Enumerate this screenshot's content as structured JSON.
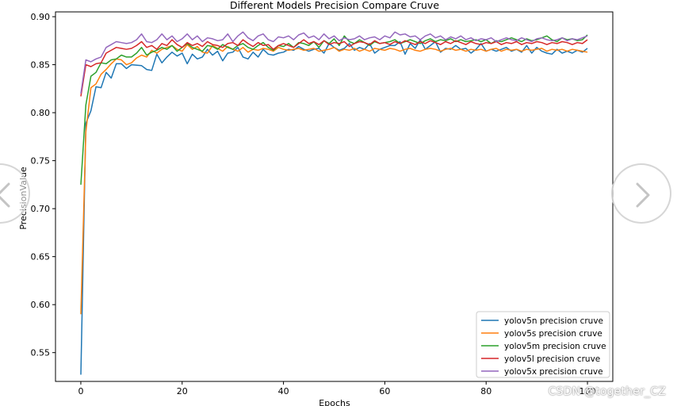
{
  "chart_data": {
    "type": "line",
    "title": "Different Models Precision Compare Cruve",
    "xlabel": "Epochs",
    "ylabel": "PrecisionValue",
    "xlim": [
      -5,
      105
    ],
    "ylim": [
      0.52,
      0.905
    ],
    "xticks": [
      0,
      20,
      40,
      60,
      80,
      100
    ],
    "xtick_labels": [
      "0",
      "20",
      "40",
      "60",
      "80",
      "100"
    ],
    "yticks": [
      0.55,
      0.6,
      0.65,
      0.7,
      0.75,
      0.8,
      0.85,
      0.9
    ],
    "ytick_labels": [
      "0.55",
      "0.60",
      "0.65",
      "0.70",
      "0.75",
      "0.80",
      "0.85",
      "0.90"
    ],
    "grid": false,
    "legend_position": "lower-right",
    "series": [
      {
        "name": "yolov5n precision cruve",
        "color": "#1f77b4",
        "x": [
          0,
          1,
          2,
          3,
          4,
          5,
          6,
          7,
          8,
          9,
          10,
          12,
          13,
          14,
          15,
          16,
          17,
          18,
          19,
          20,
          21,
          22,
          23,
          24,
          25,
          26,
          27,
          28,
          29,
          30,
          31,
          32,
          33,
          34,
          35,
          36,
          37,
          38,
          39,
          40,
          41,
          42,
          43,
          44,
          45,
          46,
          47,
          48,
          49,
          50,
          51,
          52,
          53,
          54,
          55,
          56,
          57,
          58,
          59,
          60,
          61,
          62,
          63,
          64,
          65,
          66,
          67,
          68,
          69,
          70,
          71,
          72,
          73,
          74,
          75,
          76,
          77,
          78,
          79,
          80,
          81,
          82,
          83,
          84,
          85,
          86,
          87,
          88,
          89,
          90,
          91,
          92,
          93,
          94,
          95,
          96,
          97,
          98,
          99,
          100
        ],
        "values": [
          0.527,
          0.789,
          0.802,
          0.827,
          0.826,
          0.842,
          0.836,
          0.851,
          0.851,
          0.846,
          0.85,
          0.849,
          0.845,
          0.844,
          0.861,
          0.852,
          0.858,
          0.863,
          0.859,
          0.862,
          0.851,
          0.861,
          0.856,
          0.858,
          0.866,
          0.86,
          0.864,
          0.854,
          0.862,
          0.863,
          0.868,
          0.858,
          0.856,
          0.863,
          0.858,
          0.866,
          0.861,
          0.86,
          0.862,
          0.863,
          0.866,
          0.865,
          0.869,
          0.866,
          0.864,
          0.866,
          0.867,
          0.862,
          0.872,
          0.868,
          0.865,
          0.867,
          0.872,
          0.865,
          0.868,
          0.866,
          0.872,
          0.862,
          0.866,
          0.868,
          0.87,
          0.87,
          0.874,
          0.861,
          0.872,
          0.867,
          0.876,
          0.866,
          0.87,
          0.874,
          0.863,
          0.867,
          0.866,
          0.87,
          0.866,
          0.867,
          0.862,
          0.866,
          0.872,
          0.864,
          0.866,
          0.864,
          0.866,
          0.868,
          0.864,
          0.866,
          0.863,
          0.87,
          0.862,
          0.868,
          0.864,
          0.862,
          0.861,
          0.866,
          0.862,
          0.864,
          0.862,
          0.865,
          0.863,
          0.867
        ]
      },
      {
        "name": "yolov5s precision cruve",
        "color": "#ff7f0e",
        "x": [
          0,
          1,
          2,
          3,
          4,
          5,
          6,
          7,
          8,
          9,
          10,
          11,
          12,
          13,
          14,
          15,
          16,
          17,
          18,
          19,
          20,
          21,
          22,
          23,
          24,
          25,
          26,
          27,
          28,
          29,
          30,
          31,
          32,
          33,
          34,
          35,
          36,
          37,
          38,
          39,
          40,
          41,
          42,
          43,
          44,
          45,
          46,
          47,
          48,
          49,
          50,
          51,
          52,
          53,
          54,
          55,
          56,
          57,
          58,
          59,
          60,
          61,
          62,
          63,
          64,
          65,
          66,
          67,
          68,
          69,
          70,
          71,
          72,
          73,
          74,
          75,
          76,
          77,
          78,
          79,
          80,
          81,
          82,
          83,
          84,
          85,
          86,
          87,
          88,
          89,
          90,
          91,
          92,
          93,
          94,
          95,
          96,
          97,
          98,
          99,
          100
        ],
        "values": [
          0.59,
          0.78,
          0.826,
          0.83,
          0.84,
          0.845,
          0.851,
          0.856,
          0.855,
          0.85,
          0.852,
          0.857,
          0.86,
          0.858,
          0.865,
          0.862,
          0.866,
          0.868,
          0.87,
          0.866,
          0.864,
          0.871,
          0.866,
          0.869,
          0.863,
          0.862,
          0.87,
          0.867,
          0.864,
          0.869,
          0.866,
          0.864,
          0.868,
          0.863,
          0.866,
          0.865,
          0.867,
          0.866,
          0.864,
          0.868,
          0.866,
          0.865,
          0.866,
          0.867,
          0.865,
          0.866,
          0.867,
          0.864,
          0.865,
          0.866,
          0.868,
          0.864,
          0.866,
          0.865,
          0.867,
          0.864,
          0.866,
          0.864,
          0.867,
          0.866,
          0.865,
          0.867,
          0.866,
          0.864,
          0.866,
          0.867,
          0.865,
          0.864,
          0.866,
          0.867,
          0.866,
          0.864,
          0.866,
          0.867,
          0.865,
          0.866,
          0.864,
          0.866,
          0.865,
          0.866,
          0.864,
          0.866,
          0.867,
          0.864,
          0.866,
          0.865,
          0.866,
          0.864,
          0.866,
          0.865,
          0.866,
          0.867,
          0.864,
          0.866,
          0.865,
          0.866,
          0.864,
          0.866,
          0.865,
          0.864,
          0.863
        ]
      },
      {
        "name": "yolov5m precision cruve",
        "color": "#2ca02c",
        "x": [
          0,
          1,
          2,
          3,
          4,
          5,
          6,
          7,
          8,
          9,
          10,
          11,
          12,
          13,
          14,
          15,
          16,
          17,
          18,
          19,
          20,
          21,
          22,
          23,
          24,
          25,
          26,
          27,
          28,
          29,
          30,
          31,
          32,
          33,
          34,
          35,
          36,
          37,
          38,
          39,
          40,
          41,
          42,
          43,
          44,
          45,
          46,
          47,
          48,
          49,
          50,
          51,
          52,
          53,
          54,
          55,
          56,
          57,
          58,
          59,
          60,
          61,
          62,
          63,
          64,
          65,
          66,
          67,
          68,
          69,
          70,
          71,
          72,
          73,
          74,
          75,
          76,
          77,
          78,
          79,
          80,
          81,
          82,
          83,
          84,
          85,
          86,
          87,
          88,
          89,
          90,
          91,
          92,
          93,
          94,
          95,
          96,
          97,
          98,
          99,
          100
        ],
        "values": [
          0.725,
          0.808,
          0.838,
          0.842,
          0.852,
          0.851,
          0.855,
          0.856,
          0.86,
          0.858,
          0.858,
          0.862,
          0.868,
          0.86,
          0.863,
          0.865,
          0.868,
          0.866,
          0.87,
          0.864,
          0.868,
          0.872,
          0.868,
          0.866,
          0.864,
          0.87,
          0.869,
          0.866,
          0.871,
          0.868,
          0.866,
          0.87,
          0.872,
          0.868,
          0.866,
          0.87,
          0.873,
          0.868,
          0.865,
          0.87,
          0.869,
          0.872,
          0.868,
          0.873,
          0.872,
          0.87,
          0.874,
          0.868,
          0.875,
          0.872,
          0.877,
          0.87,
          0.88,
          0.874,
          0.872,
          0.876,
          0.873,
          0.87,
          0.874,
          0.872,
          0.873,
          0.874,
          0.876,
          0.872,
          0.874,
          0.876,
          0.874,
          0.872,
          0.875,
          0.877,
          0.874,
          0.876,
          0.875,
          0.877,
          0.874,
          0.876,
          0.874,
          0.875,
          0.876,
          0.874,
          0.876,
          0.872,
          0.875,
          0.874,
          0.876,
          0.878,
          0.876,
          0.874,
          0.877,
          0.875,
          0.876,
          0.878,
          0.88,
          0.876,
          0.874,
          0.878,
          0.876,
          0.877,
          0.875,
          0.876,
          0.881
        ]
      },
      {
        "name": "yolov5l precision cruve",
        "color": "#d62728",
        "x": [
          0,
          1,
          2,
          3,
          4,
          5,
          6,
          7,
          8,
          9,
          10,
          11,
          12,
          13,
          14,
          15,
          16,
          17,
          18,
          19,
          20,
          21,
          22,
          23,
          24,
          25,
          26,
          27,
          28,
          29,
          30,
          31,
          32,
          33,
          34,
          35,
          36,
          37,
          38,
          39,
          40,
          41,
          42,
          43,
          44,
          45,
          46,
          47,
          48,
          49,
          50,
          51,
          52,
          53,
          54,
          55,
          56,
          57,
          58,
          59,
          60,
          61,
          62,
          63,
          64,
          65,
          66,
          67,
          68,
          69,
          70,
          71,
          72,
          73,
          74,
          75,
          76,
          77,
          78,
          79,
          80,
          81,
          82,
          83,
          84,
          85,
          86,
          87,
          88,
          89,
          90,
          91,
          92,
          93,
          94,
          95,
          96,
          97,
          98,
          99,
          100
        ],
        "values": [
          0.817,
          0.85,
          0.848,
          0.851,
          0.852,
          0.862,
          0.865,
          0.868,
          0.867,
          0.866,
          0.867,
          0.87,
          0.874,
          0.868,
          0.87,
          0.866,
          0.872,
          0.87,
          0.876,
          0.871,
          0.868,
          0.873,
          0.87,
          0.872,
          0.869,
          0.874,
          0.871,
          0.87,
          0.868,
          0.872,
          0.873,
          0.87,
          0.876,
          0.872,
          0.869,
          0.873,
          0.87,
          0.871,
          0.866,
          0.87,
          0.872,
          0.87,
          0.868,
          0.872,
          0.876,
          0.872,
          0.874,
          0.871,
          0.875,
          0.871,
          0.873,
          0.872,
          0.874,
          0.869,
          0.872,
          0.874,
          0.873,
          0.871,
          0.875,
          0.872,
          0.873,
          0.871,
          0.874,
          0.872,
          0.875,
          0.873,
          0.871,
          0.874,
          0.872,
          0.875,
          0.873,
          0.871,
          0.874,
          0.872,
          0.875,
          0.873,
          0.871,
          0.874,
          0.872,
          0.871,
          0.873,
          0.872,
          0.874,
          0.871,
          0.873,
          0.872,
          0.874,
          0.871,
          0.873,
          0.872,
          0.874,
          0.873,
          0.871,
          0.873,
          0.872,
          0.874,
          0.873,
          0.871,
          0.873,
          0.872,
          0.876
        ]
      },
      {
        "name": "yolov5x precision cruve",
        "color": "#9467bd",
        "x": [
          0,
          1,
          2,
          3,
          4,
          5,
          6,
          7,
          8,
          9,
          10,
          11,
          12,
          13,
          14,
          15,
          16,
          17,
          18,
          19,
          20,
          21,
          22,
          23,
          24,
          25,
          26,
          27,
          28,
          29,
          30,
          31,
          32,
          33,
          34,
          35,
          36,
          37,
          38,
          39,
          40,
          41,
          42,
          43,
          44,
          45,
          46,
          47,
          48,
          49,
          50,
          51,
          52,
          53,
          54,
          55,
          56,
          57,
          58,
          59,
          60,
          61,
          62,
          63,
          64,
          65,
          66,
          67,
          68,
          69,
          70,
          71,
          72,
          73,
          74,
          75,
          76,
          77,
          78,
          79,
          80,
          81,
          82,
          83,
          84,
          85,
          86,
          87,
          88,
          89,
          90,
          91,
          92,
          93,
          94,
          95,
          96,
          97,
          98,
          99,
          100
        ],
        "values": [
          0.82,
          0.855,
          0.853,
          0.856,
          0.858,
          0.868,
          0.871,
          0.874,
          0.873,
          0.872,
          0.873,
          0.876,
          0.882,
          0.874,
          0.873,
          0.876,
          0.882,
          0.876,
          0.88,
          0.874,
          0.877,
          0.882,
          0.876,
          0.88,
          0.874,
          0.878,
          0.877,
          0.875,
          0.876,
          0.882,
          0.874,
          0.88,
          0.884,
          0.878,
          0.875,
          0.88,
          0.882,
          0.876,
          0.874,
          0.879,
          0.878,
          0.88,
          0.876,
          0.881,
          0.883,
          0.878,
          0.88,
          0.876,
          0.882,
          0.877,
          0.88,
          0.875,
          0.878,
          0.876,
          0.877,
          0.88,
          0.876,
          0.878,
          0.879,
          0.876,
          0.88,
          0.878,
          0.884,
          0.881,
          0.882,
          0.879,
          0.88,
          0.876,
          0.88,
          0.882,
          0.878,
          0.88,
          0.876,
          0.879,
          0.877,
          0.88,
          0.876,
          0.878,
          0.875,
          0.877,
          0.876,
          0.878,
          0.874,
          0.876,
          0.878,
          0.876,
          0.875,
          0.878,
          0.876,
          0.874,
          0.877,
          0.878,
          0.876,
          0.875,
          0.876,
          0.878,
          0.875,
          0.877,
          0.876,
          0.878,
          0.88
        ]
      }
    ]
  },
  "nav": {
    "prev_icon": "chevron-left-icon",
    "next_icon": "chevron-right-icon"
  },
  "watermark": "CSDN @together_CZ"
}
